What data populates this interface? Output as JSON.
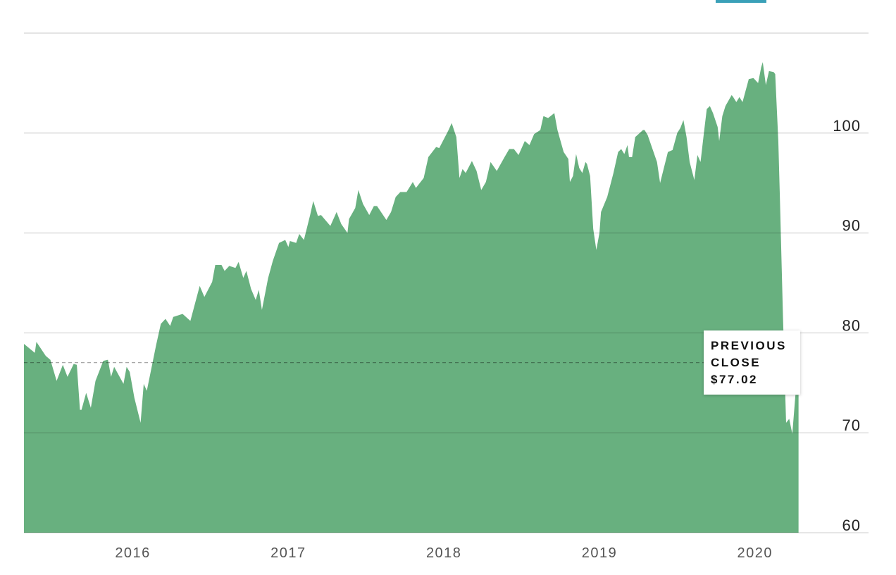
{
  "chart_data": {
    "type": "area",
    "color": "#68b07f",
    "xlim": [
      2015.3,
      2020.73
    ],
    "xticks": [
      2016,
      2017,
      2018,
      2019,
      2020
    ],
    "ylim": [
      60,
      110
    ],
    "yticks": [
      60,
      70,
      80,
      90,
      100
    ],
    "grid": true,
    "previous_close": {
      "label": "PREVIOUS CLOSE",
      "value": 77.02,
      "value_label": "$77.02"
    },
    "x": [
      2015.3,
      2015.37,
      2015.38,
      2015.44,
      2015.47,
      2015.51,
      2015.55,
      2015.58,
      2015.62,
      2015.64,
      2015.66,
      2015.67,
      2015.7,
      2015.73,
      2015.76,
      2015.81,
      2015.84,
      2015.86,
      2015.88,
      2015.94,
      2015.96,
      2015.98,
      2016.01,
      2016.05,
      2016.07,
      2016.09,
      2016.12,
      2016.15,
      2016.18,
      2016.21,
      2016.24,
      2016.26,
      2016.32,
      2016.37,
      2016.43,
      2016.46,
      2016.51,
      2016.53,
      2016.57,
      2016.59,
      2016.62,
      2016.66,
      2016.68,
      2016.71,
      2016.73,
      2016.76,
      2016.79,
      2016.81,
      2016.83,
      2016.87,
      2016.9,
      2016.94,
      2016.98,
      2017.0,
      2017.01,
      2017.05,
      2017.07,
      2017.1,
      2017.14,
      2017.16,
      2017.19,
      2017.21,
      2017.27,
      2017.31,
      2017.34,
      2017.38,
      2017.39,
      2017.43,
      2017.45,
      2017.48,
      2017.52,
      2017.55,
      2017.57,
      2017.63,
      2017.66,
      2017.69,
      2017.72,
      2017.76,
      2017.8,
      2017.82,
      2017.87,
      2017.9,
      2017.95,
      2017.97,
      2018.03,
      2018.05,
      2018.08,
      2018.1,
      2018.12,
      2018.14,
      2018.18,
      2018.21,
      2018.24,
      2018.27,
      2018.3,
      2018.34,
      2018.39,
      2018.42,
      2018.45,
      2018.48,
      2018.52,
      2018.55,
      2018.58,
      2018.62,
      2018.64,
      2018.67,
      2018.71,
      2018.73,
      2018.77,
      2018.8,
      2018.81,
      2018.83,
      2018.85,
      2018.87,
      2018.89,
      2018.91,
      2018.92,
      2018.94,
      2018.96,
      2018.98,
      2019.0,
      2019.01,
      2019.05,
      2019.09,
      2019.12,
      2019.14,
      2019.16,
      2019.18,
      2019.19,
      2019.21,
      2019.23,
      2019.28,
      2019.29,
      2019.31,
      2019.37,
      2019.39,
      2019.44,
      2019.47,
      2019.5,
      2019.52,
      2019.54,
      2019.56,
      2019.58,
      2019.61,
      2019.63,
      2019.65,
      2019.67,
      2019.69,
      2019.71,
      2019.73,
      2019.76,
      2019.77,
      2019.79,
      2019.81,
      2019.85,
      2019.86,
      2019.88,
      2019.9,
      2019.92,
      2019.96,
      2019.99,
      2020.02,
      2020.04,
      2020.05,
      2020.07,
      2020.09,
      2020.12,
      2020.13,
      2020.15,
      2020.16,
      2020.18,
      2020.2,
      2020.22,
      2020.24,
      2020.26,
      2020.28
    ],
    "values": [
      78.9,
      78.0,
      79.1,
      77.7,
      77.3,
      75.2,
      76.8,
      75.6,
      76.9,
      76.8,
      72.3,
      72.3,
      74.0,
      72.5,
      75.2,
      77.2,
      77.3,
      75.6,
      76.6,
      74.9,
      76.6,
      76.1,
      73.5,
      71.0,
      74.9,
      74.2,
      76.5,
      78.8,
      80.9,
      81.4,
      80.7,
      81.6,
      81.9,
      81.2,
      84.7,
      83.6,
      85.1,
      86.8,
      86.8,
      86.2,
      86.7,
      86.5,
      87.1,
      85.5,
      86.2,
      84.4,
      83.3,
      84.3,
      82.3,
      85.5,
      87.2,
      89.0,
      89.3,
      88.6,
      89.2,
      89.0,
      89.9,
      89.3,
      91.8,
      93.2,
      91.7,
      91.8,
      90.7,
      92.1,
      90.9,
      90.0,
      91.4,
      92.5,
      94.3,
      92.9,
      91.8,
      92.7,
      92.7,
      91.3,
      92.1,
      93.6,
      94.1,
      94.1,
      95.1,
      94.5,
      95.5,
      97.6,
      98.6,
      98.5,
      100.3,
      101.0,
      99.6,
      95.5,
      96.4,
      96.0,
      97.2,
      96.2,
      94.3,
      95.1,
      97.1,
      96.2,
      97.6,
      98.4,
      98.4,
      97.8,
      99.2,
      98.8,
      99.9,
      100.3,
      101.7,
      101.5,
      102.0,
      100.3,
      98.1,
      97.4,
      95.1,
      95.7,
      97.9,
      96.5,
      96.0,
      97.1,
      96.9,
      95.7,
      90.4,
      88.3,
      90.0,
      92.1,
      93.6,
      96.0,
      98.1,
      98.4,
      97.9,
      98.8,
      97.6,
      97.6,
      99.6,
      100.3,
      100.3,
      99.8,
      97.1,
      95.0,
      98.1,
      98.3,
      100.0,
      100.5,
      101.3,
      99.6,
      97.1,
      95.3,
      97.8,
      97.1,
      99.8,
      102.4,
      102.7,
      102.0,
      100.6,
      99.2,
      101.7,
      102.7,
      103.8,
      103.6,
      103.1,
      103.6,
      103.1,
      105.4,
      105.5,
      105.0,
      106.6,
      107.1,
      104.8,
      106.2,
      106.1,
      105.9,
      99.2,
      93.6,
      81.6,
      71.0,
      71.4,
      69.9,
      73.8,
      73.8
    ]
  }
}
